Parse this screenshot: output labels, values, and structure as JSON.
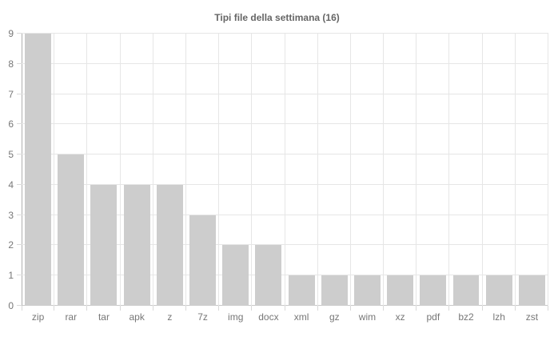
{
  "chart_data": {
    "type": "bar",
    "title": "Tipi file della settimana (16)",
    "categories": [
      "zip",
      "rar",
      "tar",
      "apk",
      "z",
      "7z",
      "img",
      "docx",
      "xml",
      "gz",
      "wim",
      "xz",
      "pdf",
      "bz2",
      "lzh",
      "zst"
    ],
    "values": [
      9,
      5,
      4,
      4,
      4,
      3,
      2,
      2,
      1,
      1,
      1,
      1,
      1,
      1,
      1,
      1
    ],
    "xlabel": "",
    "ylabel": "",
    "ylim": [
      0,
      9
    ],
    "yticks": [
      0,
      1,
      2,
      3,
      4,
      5,
      6,
      7,
      8,
      9
    ],
    "grid": true,
    "legend": "none",
    "colors": {
      "bar": "#cdcdcd",
      "grid": "#e6e6e6",
      "axis_line": "#b0b0b0",
      "baseline": "#c9c9c9",
      "tick_mark": "#d9d9d9",
      "title_text": "#666666",
      "tick_label": "#777777",
      "background": "#ffffff"
    }
  }
}
